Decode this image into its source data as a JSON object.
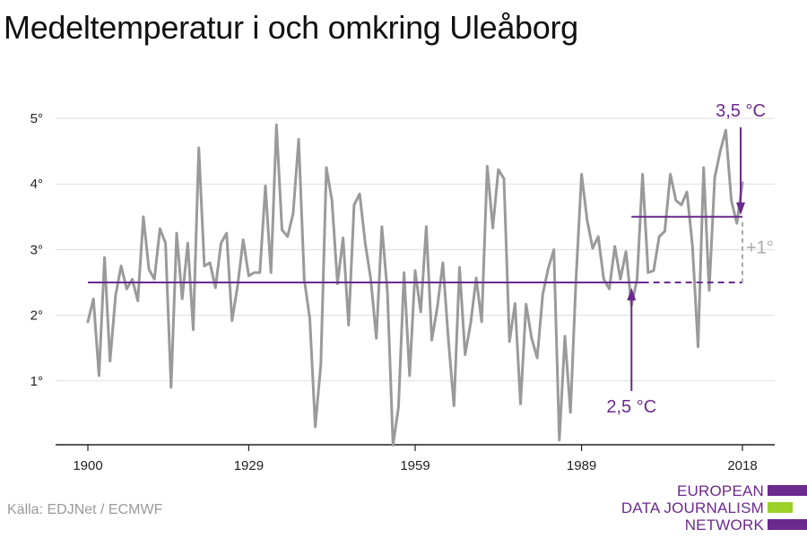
{
  "title": "Medeltemperatur i och omkring Uleåborg",
  "source": "Källa: EDJNet / ECMWF",
  "logo": {
    "lines": [
      "EUROPEAN",
      "DATA JOURNALISM",
      "NETWORK"
    ],
    "colors": {
      "purple": "#6b2a8e",
      "green": "#9bd22a"
    }
  },
  "colors": {
    "line": "#9a9a9a",
    "accent": "#6b2a8e",
    "grid": "#dddddd",
    "axis": "#222222"
  },
  "chart_data": {
    "type": "line",
    "title": "Medeltemperatur i och omkring Uleåborg",
    "xlabel": "",
    "ylabel": "",
    "xlim": [
      1900,
      2018
    ],
    "ylim": [
      0,
      5.5
    ],
    "x_ticks": [
      1900,
      1929,
      1959,
      1989,
      2018
    ],
    "x_tick_labels": [
      "1900",
      "1929",
      "1959",
      "1989",
      "2018"
    ],
    "y_ticks": [
      1,
      2,
      3,
      4,
      5
    ],
    "y_tick_labels": [
      "1°",
      "2°",
      "3°",
      "4°",
      "5°"
    ],
    "grid": "horizontal",
    "series": [
      {
        "x": [
          1900,
          1901,
          1902,
          1903,
          1904,
          1905,
          1906,
          1907,
          1908,
          1909,
          1910,
          1911,
          1912,
          1913,
          1914,
          1915,
          1916,
          1917,
          1918,
          1919,
          1920,
          1921,
          1922,
          1923,
          1924,
          1925,
          1926,
          1927,
          1928,
          1929,
          1930,
          1931,
          1932,
          1933,
          1934,
          1935,
          1936,
          1937,
          1938,
          1939,
          1940,
          1941,
          1942,
          1943,
          1944,
          1945,
          1946,
          1947,
          1948,
          1949,
          1950,
          1951,
          1952,
          1953,
          1954,
          1955,
          1956,
          1957,
          1958,
          1959,
          1960,
          1961,
          1962,
          1963,
          1964,
          1965,
          1966,
          1967,
          1968,
          1969,
          1970,
          1971,
          1972,
          1973,
          1974,
          1975,
          1976,
          1977,
          1978,
          1979,
          1980,
          1981,
          1982,
          1983,
          1984,
          1985,
          1986,
          1987,
          1988,
          1989,
          1990,
          1991,
          1992,
          1993,
          1994,
          1995,
          1996,
          1997,
          1998,
          1999,
          2000,
          2001,
          2002,
          2003,
          2004,
          2005,
          2006,
          2007,
          2008,
          2009,
          2010,
          2011,
          2012,
          2013,
          2014,
          2015,
          2016,
          2017,
          2018
        ],
        "values": [
          1.9,
          2.25,
          1.08,
          2.88,
          1.3,
          2.3,
          2.75,
          2.4,
          2.55,
          2.22,
          3.5,
          2.7,
          2.55,
          3.32,
          3.1,
          0.9,
          3.25,
          2.25,
          3.1,
          1.78,
          4.55,
          2.75,
          2.8,
          2.42,
          3.1,
          3.25,
          1.92,
          2.45,
          3.15,
          2.6,
          2.65,
          2.65,
          3.97,
          2.65,
          4.9,
          3.3,
          3.2,
          3.55,
          4.68,
          2.55,
          1.95,
          0.3,
          1.25,
          4.25,
          3.75,
          2.48,
          3.18,
          1.85,
          3.68,
          3.85,
          3.1,
          2.55,
          1.65,
          3.35,
          2.35,
          0.02,
          0.6,
          2.65,
          1.08,
          2.68,
          2.05,
          3.35,
          1.62,
          2.12,
          2.8,
          1.62,
          0.62,
          2.73,
          1.4,
          1.88,
          2.57,
          1.9,
          4.27,
          3.33,
          4.22,
          4.08,
          1.6,
          2.18,
          0.65,
          2.17,
          1.65,
          1.35,
          2.32,
          2.72,
          3.0,
          0.1,
          1.68,
          0.52,
          2.55,
          4.15,
          3.45,
          3.02,
          3.2,
          2.55,
          2.4,
          3.05,
          2.55,
          2.97,
          2.15,
          2.55,
          4.15,
          2.65,
          2.68,
          3.2,
          3.28,
          4.15,
          3.75,
          3.68,
          3.88,
          3.05,
          1.52,
          4.25,
          2.38,
          4.1,
          4.5,
          4.82,
          3.75,
          3.4,
          4.02
        ]
      }
    ],
    "annotations": {
      "baseline": {
        "value": 2.5,
        "label": "2,5 °C"
      },
      "recent": {
        "value": 3.5,
        "label": "3,5 °C"
      },
      "difference": "+1°"
    }
  }
}
